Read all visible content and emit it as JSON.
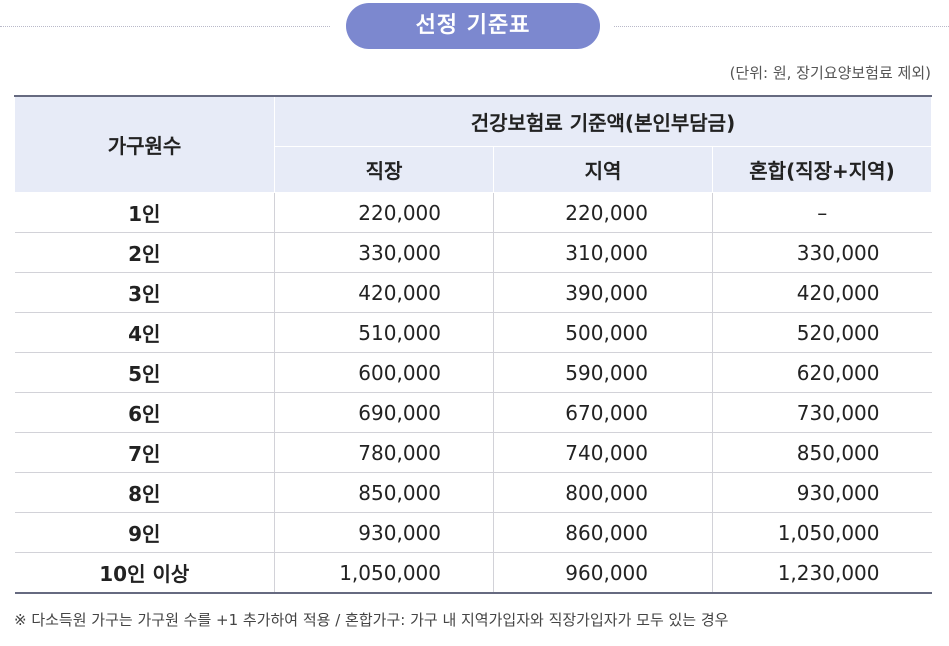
{
  "title": "선정 기준표",
  "unit_note": "(단위: 원, 장기요양보험료 제외)",
  "table": {
    "row_header": "가구원수",
    "group_header": "건강보험료 기준액(본인부담금)",
    "columns": [
      "직장",
      "지역",
      "혼합(직장+지역)"
    ],
    "rows": [
      {
        "size": "1인",
        "values": [
          "220,000",
          "220,000",
          "–"
        ]
      },
      {
        "size": "2인",
        "values": [
          "330,000",
          "310,000",
          "330,000"
        ]
      },
      {
        "size": "3인",
        "values": [
          "420,000",
          "390,000",
          "420,000"
        ]
      },
      {
        "size": "4인",
        "values": [
          "510,000",
          "500,000",
          "520,000"
        ]
      },
      {
        "size": "5인",
        "values": [
          "600,000",
          "590,000",
          "620,000"
        ]
      },
      {
        "size": "6인",
        "values": [
          "690,000",
          "670,000",
          "730,000"
        ]
      },
      {
        "size": "7인",
        "values": [
          "780,000",
          "740,000",
          "850,000"
        ]
      },
      {
        "size": "8인",
        "values": [
          "850,000",
          "800,000",
          "930,000"
        ]
      },
      {
        "size": "9인",
        "values": [
          "930,000",
          "860,000",
          "1,050,000"
        ]
      },
      {
        "size": "10인 이상",
        "values": [
          "1,050,000",
          "960,000",
          "1,230,000"
        ]
      }
    ]
  },
  "footnote": "※ 다소득원 가구는 가구원 수를 +1 추가하여 적용 / 혼합가구: 가구 내 지역가입자와 직장가입자가 모두 있는 경우",
  "colors": {
    "accent": "#7c88cf",
    "header_bg": "#e7ebf7",
    "border": "#666a80"
  }
}
